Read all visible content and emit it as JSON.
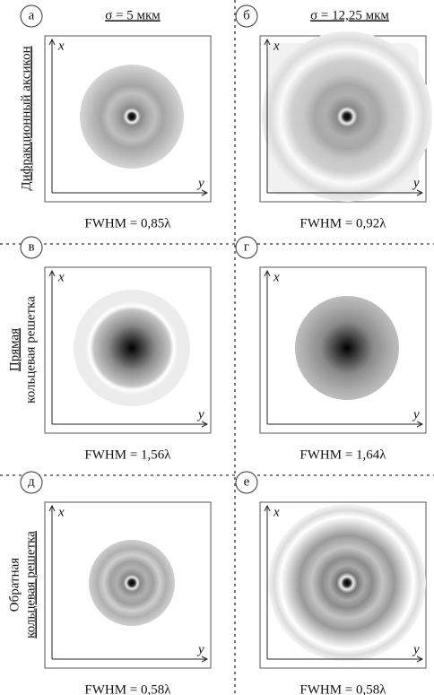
{
  "column_headers": [
    "σ = 5 мкм",
    "σ = 12,25 мкм"
  ],
  "rows": [
    {
      "label_lines": [
        "Дифракционный аксикон"
      ],
      "panels": [
        {
          "letter": "а",
          "x_axis": "x",
          "y_axis": "y",
          "fwhm": "FWHM = 0,85λ"
        },
        {
          "letter": "б",
          "x_axis": "x",
          "y_axis": "y",
          "fwhm": "FWHM = 0,92λ"
        }
      ]
    },
    {
      "label_lines": [
        "Прямая",
        "кольцевая решетка"
      ],
      "panels": [
        {
          "letter": "в",
          "x_axis": "x",
          "y_axis": "y",
          "fwhm": "FWHM = 1,56λ"
        },
        {
          "letter": "г",
          "x_axis": "x",
          "y_axis": "y",
          "fwhm": "FWHM = 1,64λ"
        }
      ]
    },
    {
      "label_lines": [
        "Обратная",
        "кольцевая решетка"
      ],
      "panels": [
        {
          "letter": "д",
          "x_axis": "x",
          "y_axis": "y",
          "fwhm": "FWHM = 0,58λ"
        },
        {
          "letter": "е",
          "x_axis": "x",
          "y_axis": "y",
          "fwhm": "FWHM = 0,58λ"
        }
      ]
    }
  ]
}
